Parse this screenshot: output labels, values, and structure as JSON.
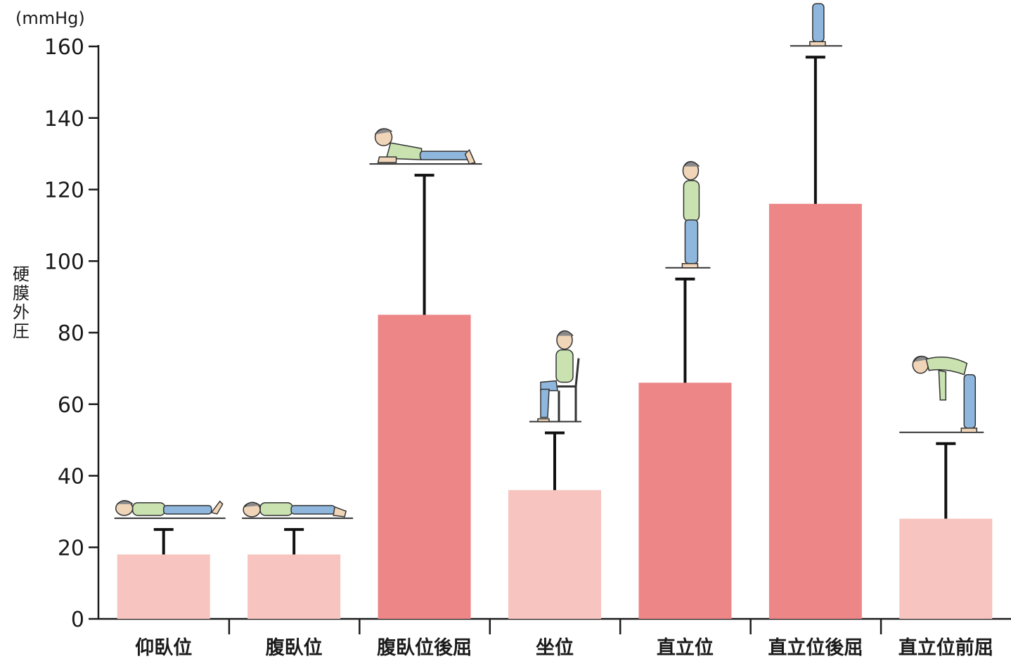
{
  "chart_data": {
    "type": "bar",
    "unit": "(mmHg)",
    "ylabel": "硬膜外圧",
    "xlabel": "",
    "ylim": [
      0,
      160
    ],
    "yticks": [
      0,
      20,
      40,
      60,
      80,
      100,
      120,
      140,
      160
    ],
    "grid": false,
    "legend": "none",
    "categories": [
      "仰臥位",
      "腹臥位",
      "腹臥位後屈",
      "坐位",
      "直立位",
      "直立位後屈",
      "直立位前屈"
    ],
    "values": [
      18,
      18,
      85,
      36,
      66,
      116,
      28
    ],
    "error_upper": [
      25,
      25,
      124,
      52,
      95,
      157,
      49
    ],
    "bar_colors": [
      "#f7c4bf",
      "#f7c4bf",
      "#ed8686",
      "#f7c4bf",
      "#ed8686",
      "#ed8686",
      "#f7c4bf"
    ],
    "figure_icons": [
      "lying-supine-person-icon",
      "lying-prone-person-icon",
      "prone-extension-person-icon",
      "seated-person-icon",
      "standing-person-icon",
      "standing-extension-person-icon",
      "standing-flexion-person-icon"
    ]
  }
}
